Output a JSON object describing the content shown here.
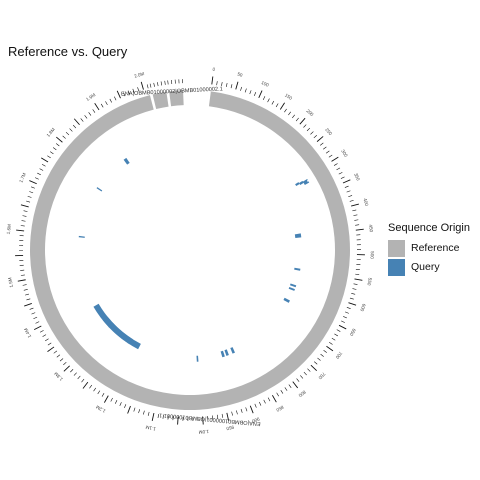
{
  "chart_data": {
    "type": "circular",
    "title": "Reference vs. Query",
    "legend": {
      "title": "Sequence Origin",
      "placement": "right",
      "entries": [
        {
          "name": "Reference",
          "color": "#B3B3B3"
        },
        {
          "name": "Query",
          "color": "#4682B4"
        }
      ]
    },
    "sequences": [
      {
        "name": "ENA|OBMB01000001|OBMB01000001.1",
        "origin": "Reference",
        "length_kb": 2010
      },
      {
        "name": "ENA|OBMB01000002|OBMB01000002.1",
        "origin": "Reference",
        "length_kb": 15
      },
      {
        "name": "",
        "origin": "Reference",
        "length_kb": 15
      }
    ],
    "query_alignments_kb": [
      [
        305,
        308
      ],
      [
        312,
        315
      ],
      [
        300,
        306
      ],
      [
        303,
        309
      ],
      [
        307,
        313
      ],
      [
        1190,
        1330
      ],
      [
        1220,
        1380
      ],
      [
        440,
        452
      ],
      [
        548,
        554
      ],
      [
        600,
        606
      ],
      [
        612,
        618
      ],
      [
        650,
        658
      ],
      [
        885,
        893
      ],
      [
        905,
        913
      ],
      [
        918,
        926
      ],
      [
        1000,
        1005
      ],
      [
        1300,
        1304
      ],
      [
        1600,
        1604
      ],
      [
        1760,
        1764
      ],
      [
        1880,
        1890
      ]
    ],
    "outer_tick_labels": [
      "0",
      "50",
      "100",
      "150",
      "200",
      "250",
      "300",
      "350",
      "400",
      "450",
      "500",
      "550",
      "600",
      "650",
      "700",
      "750",
      "800",
      "850",
      "900",
      "950",
      "1.0M",
      "1.1M",
      "1.2M",
      "1.3M",
      "1.4M",
      "1.5M",
      "1.6M",
      "1.7M",
      "1.8M",
      "1.9M",
      "2.0M"
    ]
  }
}
